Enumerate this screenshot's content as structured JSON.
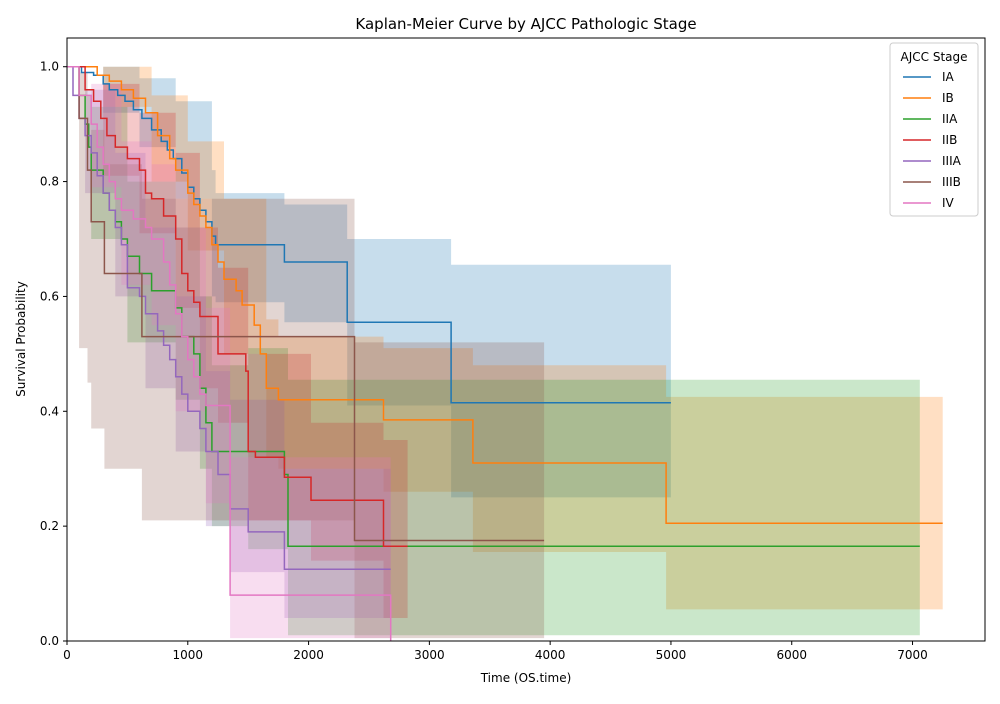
{
  "chart_data": {
    "type": "line",
    "subtype": "kaplan-meier-step-with-confidence-bands",
    "title": "Kaplan-Meier Curve by AJCC Pathologic Stage",
    "xlabel": "Time (OS.time)",
    "ylabel": "Survival Probability",
    "xlim": [
      0,
      7600
    ],
    "ylim": [
      0,
      1.05
    ],
    "xticks": [
      0,
      1000,
      2000,
      3000,
      4000,
      5000,
      6000,
      7000
    ],
    "yticks": [
      0.0,
      0.2,
      0.4,
      0.6,
      0.8,
      1.0
    ],
    "grid": false,
    "legend": {
      "title": "AJCC Stage",
      "position": "top-right"
    },
    "series": [
      {
        "name": "IA",
        "color": "#1f77b4",
        "steps": [
          [
            0,
            1.0
          ],
          [
            120,
            0.99
          ],
          [
            220,
            0.985
          ],
          [
            300,
            0.97
          ],
          [
            350,
            0.96
          ],
          [
            420,
            0.95
          ],
          [
            480,
            0.94
          ],
          [
            550,
            0.925
          ],
          [
            620,
            0.91
          ],
          [
            700,
            0.89
          ],
          [
            780,
            0.87
          ],
          [
            830,
            0.855
          ],
          [
            880,
            0.84
          ],
          [
            950,
            0.815
          ],
          [
            1000,
            0.79
          ],
          [
            1050,
            0.77
          ],
          [
            1100,
            0.75
          ],
          [
            1150,
            0.73
          ],
          [
            1200,
            0.705
          ],
          [
            1230,
            0.69
          ],
          [
            1800,
            0.66
          ],
          [
            2320,
            0.555
          ],
          [
            3180,
            0.415
          ],
          [
            5000,
            0.415
          ]
        ],
        "ci": [
          [
            0,
            1.0,
            1.0
          ],
          [
            300,
            0.92,
            1.0
          ],
          [
            600,
            0.86,
            0.98
          ],
          [
            900,
            0.77,
            0.94
          ],
          [
            1200,
            0.6,
            0.82
          ],
          [
            1230,
            0.59,
            0.78
          ],
          [
            1800,
            0.555,
            0.76
          ],
          [
            2320,
            0.41,
            0.7
          ],
          [
            3180,
            0.25,
            0.655
          ],
          [
            5000,
            0.25,
            0.655
          ]
        ]
      },
      {
        "name": "IB",
        "color": "#ff7f0e",
        "steps": [
          [
            0,
            1.0
          ],
          [
            250,
            0.985
          ],
          [
            350,
            0.975
          ],
          [
            450,
            0.96
          ],
          [
            550,
            0.945
          ],
          [
            650,
            0.92
          ],
          [
            750,
            0.88
          ],
          [
            850,
            0.84
          ],
          [
            900,
            0.82
          ],
          [
            1000,
            0.78
          ],
          [
            1050,
            0.76
          ],
          [
            1100,
            0.74
          ],
          [
            1150,
            0.72
          ],
          [
            1200,
            0.69
          ],
          [
            1250,
            0.66
          ],
          [
            1300,
            0.63
          ],
          [
            1400,
            0.61
          ],
          [
            1450,
            0.585
          ],
          [
            1550,
            0.55
          ],
          [
            1600,
            0.5
          ],
          [
            1650,
            0.44
          ],
          [
            1750,
            0.42
          ],
          [
            2620,
            0.385
          ],
          [
            3360,
            0.31
          ],
          [
            4960,
            0.205
          ],
          [
            7250,
            0.205
          ]
        ],
        "ci": [
          [
            0,
            1.0,
            1.0
          ],
          [
            300,
            0.93,
            1.0
          ],
          [
            700,
            0.8,
            0.95
          ],
          [
            1000,
            0.68,
            0.87
          ],
          [
            1300,
            0.5,
            0.77
          ],
          [
            1650,
            0.32,
            0.56
          ],
          [
            1750,
            0.3,
            0.53
          ],
          [
            2620,
            0.26,
            0.51
          ],
          [
            3360,
            0.155,
            0.48
          ],
          [
            4960,
            0.055,
            0.425
          ],
          [
            7250,
            0.055,
            0.425
          ]
        ]
      },
      {
        "name": "IIA",
        "color": "#2ca02c",
        "steps": [
          [
            0,
            1.0
          ],
          [
            100,
            0.95
          ],
          [
            150,
            0.9
          ],
          [
            180,
            0.86
          ],
          [
            200,
            0.82
          ],
          [
            300,
            0.78
          ],
          [
            350,
            0.75
          ],
          [
            400,
            0.73
          ],
          [
            450,
            0.7
          ],
          [
            500,
            0.67
          ],
          [
            600,
            0.64
          ],
          [
            700,
            0.61
          ],
          [
            900,
            0.58
          ],
          [
            950,
            0.53
          ],
          [
            1050,
            0.5
          ],
          [
            1100,
            0.44
          ],
          [
            1150,
            0.38
          ],
          [
            1200,
            0.33
          ],
          [
            1500,
            0.33
          ],
          [
            1800,
            0.29
          ],
          [
            1830,
            0.165
          ],
          [
            7060,
            0.165
          ]
        ],
        "ci": [
          [
            0,
            1.0,
            1.0
          ],
          [
            200,
            0.7,
            0.93
          ],
          [
            500,
            0.52,
            0.8
          ],
          [
            900,
            0.42,
            0.72
          ],
          [
            1100,
            0.3,
            0.6
          ],
          [
            1200,
            0.2,
            0.48
          ],
          [
            1500,
            0.16,
            0.51
          ],
          [
            1830,
            0.01,
            0.455
          ],
          [
            7060,
            0.01,
            0.455
          ]
        ]
      },
      {
        "name": "IIB",
        "color": "#d62728",
        "steps": [
          [
            0,
            1.0
          ],
          [
            150,
            0.96
          ],
          [
            220,
            0.94
          ],
          [
            280,
            0.91
          ],
          [
            330,
            0.88
          ],
          [
            400,
            0.86
          ],
          [
            500,
            0.84
          ],
          [
            600,
            0.82
          ],
          [
            650,
            0.78
          ],
          [
            700,
            0.77
          ],
          [
            800,
            0.74
          ],
          [
            900,
            0.7
          ],
          [
            950,
            0.64
          ],
          [
            1000,
            0.61
          ],
          [
            1050,
            0.59
          ],
          [
            1100,
            0.565
          ],
          [
            1250,
            0.5
          ],
          [
            1480,
            0.47
          ],
          [
            1500,
            0.33
          ],
          [
            1560,
            0.32
          ],
          [
            1800,
            0.285
          ],
          [
            2020,
            0.245
          ],
          [
            2620,
            0.165
          ],
          [
            2820,
            0.165
          ]
        ],
        "ci": [
          [
            0,
            1.0,
            1.0
          ],
          [
            300,
            0.81,
            0.97
          ],
          [
            600,
            0.71,
            0.92
          ],
          [
            900,
            0.58,
            0.85
          ],
          [
            1100,
            0.44,
            0.72
          ],
          [
            1250,
            0.38,
            0.65
          ],
          [
            1500,
            0.21,
            0.5
          ],
          [
            2020,
            0.14,
            0.38
          ],
          [
            2620,
            0.04,
            0.35
          ],
          [
            2820,
            0.04,
            0.35
          ]
        ]
      },
      {
        "name": "IIIA",
        "color": "#9467bd",
        "steps": [
          [
            0,
            1.0
          ],
          [
            50,
            0.95
          ],
          [
            100,
            0.91
          ],
          [
            150,
            0.88
          ],
          [
            200,
            0.85
          ],
          [
            250,
            0.81
          ],
          [
            300,
            0.78
          ],
          [
            350,
            0.75
          ],
          [
            400,
            0.72
          ],
          [
            450,
            0.69
          ],
          [
            500,
            0.615
          ],
          [
            600,
            0.6
          ],
          [
            650,
            0.57
          ],
          [
            750,
            0.54
          ],
          [
            800,
            0.515
          ],
          [
            850,
            0.49
          ],
          [
            900,
            0.46
          ],
          [
            950,
            0.43
          ],
          [
            1000,
            0.4
          ],
          [
            1100,
            0.37
          ],
          [
            1150,
            0.33
          ],
          [
            1250,
            0.29
          ],
          [
            1350,
            0.23
          ],
          [
            1500,
            0.19
          ],
          [
            1800,
            0.125
          ],
          [
            2680,
            0.125
          ]
        ],
        "ci": [
          [
            0,
            1.0,
            1.0
          ],
          [
            150,
            0.78,
            0.96
          ],
          [
            400,
            0.6,
            0.85
          ],
          [
            650,
            0.44,
            0.72
          ],
          [
            900,
            0.33,
            0.6
          ],
          [
            1150,
            0.2,
            0.47
          ],
          [
            1350,
            0.12,
            0.42
          ],
          [
            1800,
            0.04,
            0.3
          ],
          [
            2680,
            0.04,
            0.3
          ]
        ]
      },
      {
        "name": "IIIB",
        "color": "#8c564b",
        "steps": [
          [
            0,
            1.0
          ],
          [
            100,
            0.91
          ],
          [
            170,
            0.82
          ],
          [
            200,
            0.73
          ],
          [
            310,
            0.64
          ],
          [
            620,
            0.53
          ],
          [
            2380,
            0.175
          ],
          [
            3950,
            0.175
          ]
        ],
        "ci": [
          [
            0,
            1.0,
            1.0
          ],
          [
            100,
            0.51,
            0.99
          ],
          [
            170,
            0.45,
            0.95
          ],
          [
            200,
            0.37,
            0.89
          ],
          [
            310,
            0.3,
            0.83
          ],
          [
            620,
            0.21,
            0.77
          ],
          [
            2380,
            0.005,
            0.52
          ],
          [
            3950,
            0.005,
            0.52
          ]
        ]
      },
      {
        "name": "IV",
        "color": "#e377c2",
        "steps": [
          [
            0,
            1.0
          ],
          [
            100,
            0.95
          ],
          [
            200,
            0.9
          ],
          [
            250,
            0.86
          ],
          [
            300,
            0.83
          ],
          [
            350,
            0.8
          ],
          [
            400,
            0.77
          ],
          [
            450,
            0.75
          ],
          [
            550,
            0.735
          ],
          [
            650,
            0.72
          ],
          [
            700,
            0.7
          ],
          [
            800,
            0.66
          ],
          [
            850,
            0.62
          ],
          [
            900,
            0.57
          ],
          [
            950,
            0.53
          ],
          [
            1000,
            0.49
          ],
          [
            1050,
            0.46
          ],
          [
            1100,
            0.43
          ],
          [
            1150,
            0.41
          ],
          [
            1350,
            0.08
          ],
          [
            2680,
            0.08
          ],
          [
            2680,
            0.0
          ]
        ],
        "ci": [
          [
            0,
            1.0,
            1.0
          ],
          [
            200,
            0.79,
            0.97
          ],
          [
            450,
            0.62,
            0.87
          ],
          [
            700,
            0.55,
            0.83
          ],
          [
            900,
            0.4,
            0.72
          ],
          [
            1150,
            0.24,
            0.58
          ],
          [
            1350,
            0.005,
            0.32
          ],
          [
            2680,
            0.005,
            0.32
          ]
        ]
      }
    ]
  }
}
